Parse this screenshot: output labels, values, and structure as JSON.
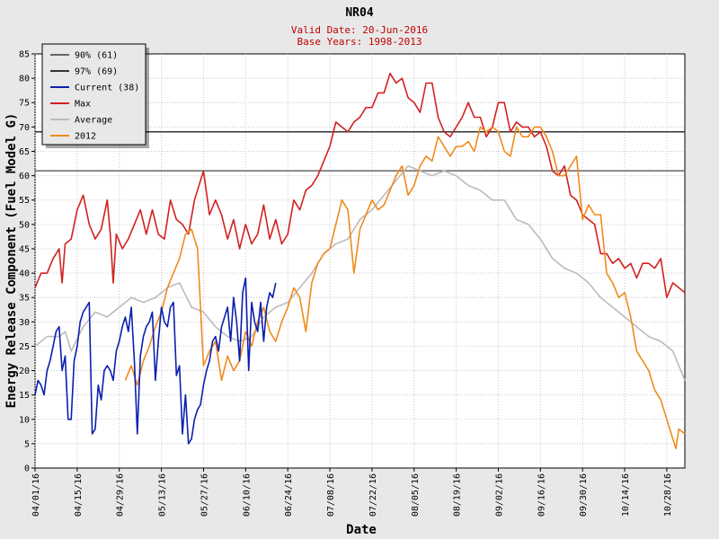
{
  "colors": {
    "pct90": "#666666",
    "pct97": "#333333",
    "current": "#0b1fb0",
    "max": "#d42020",
    "average": "#bbbbbb",
    "y2012": "#f08a1c"
  },
  "chart_data": {
    "type": "line",
    "title": "NR04",
    "subtitle_lines": [
      "Valid Date: 20-Jun-2016",
      "Base Years: 1998-2013"
    ],
    "xlabel": "Date",
    "ylabel": "Energy Release Component (Fuel Model G)",
    "ylim": [
      0,
      85
    ],
    "yticks": [
      0,
      5,
      10,
      15,
      20,
      25,
      30,
      35,
      40,
      45,
      50,
      55,
      60,
      65,
      70,
      75,
      80,
      85
    ],
    "x_domain": [
      "04/01/16",
      "11/03/16"
    ],
    "xticks": [
      "04/01/16",
      "04/15/16",
      "04/29/16",
      "05/13/16",
      "05/27/16",
      "06/10/16",
      "06/24/16",
      "07/08/16",
      "07/22/16",
      "08/05/16",
      "08/19/16",
      "09/02/16",
      "09/16/16",
      "09/30/16",
      "10/14/16",
      "10/28/16"
    ],
    "grid": true,
    "legend_position": "top-left",
    "thresholds": [
      {
        "name": "90% (61)",
        "value": 61,
        "color_key": "pct90"
      },
      {
        "name": "97% (69)",
        "value": 69,
        "color_key": "pct97"
      }
    ],
    "series": [
      {
        "name": "Current (38)",
        "color_key": "current",
        "x": [
          "04/01/16",
          "04/02/16",
          "04/03/16",
          "04/04/16",
          "04/05/16",
          "04/06/16",
          "04/07/16",
          "04/08/16",
          "04/09/16",
          "04/10/16",
          "04/11/16",
          "04/12/16",
          "04/13/16",
          "04/14/16",
          "04/15/16",
          "04/16/16",
          "04/17/16",
          "04/18/16",
          "04/19/16",
          "04/20/16",
          "04/21/16",
          "04/22/16",
          "04/23/16",
          "04/24/16",
          "04/25/16",
          "04/26/16",
          "04/27/16",
          "04/28/16",
          "04/29/16",
          "04/30/16",
          "05/01/16",
          "05/02/16",
          "05/03/16",
          "05/04/16",
          "05/05/16",
          "05/06/16",
          "05/07/16",
          "05/08/16",
          "05/09/16",
          "05/10/16",
          "05/11/16",
          "05/12/16",
          "05/13/16",
          "05/14/16",
          "05/15/16",
          "05/16/16",
          "05/17/16",
          "05/18/16",
          "05/19/16",
          "05/20/16",
          "05/21/16",
          "05/22/16",
          "05/23/16",
          "05/24/16",
          "05/25/16",
          "05/26/16",
          "05/27/16",
          "05/28/16",
          "05/29/16",
          "05/30/16",
          "05/31/16",
          "06/01/16",
          "06/02/16",
          "06/03/16",
          "06/04/16",
          "06/05/16",
          "06/06/16",
          "06/07/16",
          "06/08/16",
          "06/09/16",
          "06/10/16",
          "06/11/16",
          "06/12/16",
          "06/13/16",
          "06/14/16",
          "06/15/16",
          "06/16/16",
          "06/17/16",
          "06/18/16",
          "06/19/16",
          "06/20/16"
        ],
        "values": [
          15,
          18,
          17,
          15,
          20,
          22,
          25,
          28,
          29,
          20,
          23,
          10,
          10,
          22,
          25,
          30,
          32,
          33,
          34,
          7,
          8,
          17,
          14,
          20,
          21,
          20,
          18,
          24,
          26,
          29,
          31,
          28,
          33,
          22,
          7,
          23,
          27,
          29,
          30,
          32,
          18,
          26,
          33,
          30,
          29,
          33,
          34,
          19,
          21,
          7,
          15,
          5,
          6,
          10,
          12,
          13,
          17,
          20,
          22,
          26,
          27,
          24,
          29,
          31,
          33,
          26,
          35,
          30,
          22,
          36,
          39,
          20,
          34,
          30,
          28,
          34,
          26,
          33,
          36,
          35,
          38
        ]
      },
      {
        "name": "Max",
        "color_key": "max",
        "x": [
          "04/01/16",
          "04/03/16",
          "04/05/16",
          "04/07/16",
          "04/09/16",
          "04/10/16",
          "04/11/16",
          "04/13/16",
          "04/15/16",
          "04/17/16",
          "04/19/16",
          "04/21/16",
          "04/23/16",
          "04/25/16",
          "04/26/16",
          "04/27/16",
          "04/28/16",
          "04/30/16",
          "05/02/16",
          "05/04/16",
          "05/06/16",
          "05/08/16",
          "05/10/16",
          "05/12/16",
          "05/14/16",
          "05/16/16",
          "05/18/16",
          "05/20/16",
          "05/22/16",
          "05/24/16",
          "05/26/16",
          "05/27/16",
          "05/29/16",
          "05/31/16",
          "06/02/16",
          "06/04/16",
          "06/06/16",
          "06/08/16",
          "06/10/16",
          "06/12/16",
          "06/14/16",
          "06/16/16",
          "06/18/16",
          "06/20/16",
          "06/22/16",
          "06/24/16",
          "06/26/16",
          "06/28/16",
          "06/30/16",
          "07/02/16",
          "07/04/16",
          "07/06/16",
          "07/08/16",
          "07/10/16",
          "07/12/16",
          "07/14/16",
          "07/16/16",
          "07/18/16",
          "07/20/16",
          "07/22/16",
          "07/24/16",
          "07/26/16",
          "07/28/16",
          "07/30/16",
          "08/01/16",
          "08/03/16",
          "08/05/16",
          "08/07/16",
          "08/09/16",
          "08/11/16",
          "08/13/16",
          "08/15/16",
          "08/17/16",
          "08/19/16",
          "08/21/16",
          "08/23/16",
          "08/25/16",
          "08/27/16",
          "08/29/16",
          "08/31/16",
          "09/02/16",
          "09/04/16",
          "09/06/16",
          "09/08/16",
          "09/10/16",
          "09/12/16",
          "09/14/16",
          "09/16/16",
          "09/18/16",
          "09/20/16",
          "09/22/16",
          "09/24/16",
          "09/26/16",
          "09/28/16",
          "09/30/16",
          "10/02/16",
          "10/04/16",
          "10/06/16",
          "10/08/16",
          "10/10/16",
          "10/12/16",
          "10/14/16",
          "10/16/16",
          "10/18/16",
          "10/20/16",
          "10/22/16",
          "10/24/16",
          "10/26/16",
          "10/28/16",
          "10/30/16",
          "11/01/16",
          "11/03/16"
        ],
        "values": [
          37,
          40,
          40,
          43,
          45,
          38,
          46,
          47,
          53,
          56,
          50,
          47,
          49,
          55,
          48,
          38,
          48,
          45,
          47,
          50,
          53,
          48,
          53,
          48,
          47,
          55,
          51,
          50,
          48,
          55,
          59,
          61,
          52,
          55,
          52,
          47,
          51,
          45,
          50,
          46,
          48,
          54,
          47,
          51,
          46,
          48,
          55,
          53,
          57,
          58,
          60,
          63,
          66,
          71,
          70,
          69,
          71,
          72,
          74,
          74,
          77,
          77,
          81,
          79,
          80,
          76,
          75,
          73,
          79,
          79,
          72,
          69,
          68,
          70,
          72,
          75,
          72,
          72,
          68,
          70,
          75,
          75,
          69,
          71,
          70,
          70,
          68,
          69,
          66,
          61,
          60,
          62,
          56,
          55,
          52,
          51,
          50,
          44,
          44,
          42,
          43,
          41,
          42,
          39,
          42,
          42,
          41,
          43,
          35,
          38,
          37,
          36
        ]
      },
      {
        "name": "Average",
        "color_key": "average",
        "x": [
          "04/01/16",
          "04/05/16",
          "04/09/16",
          "04/11/16",
          "04/13/16",
          "04/17/16",
          "04/21/16",
          "04/25/16",
          "04/29/16",
          "05/03/16",
          "05/07/16",
          "05/11/16",
          "05/15/16",
          "05/19/16",
          "05/23/16",
          "05/27/16",
          "05/31/16",
          "06/04/16",
          "06/08/16",
          "06/12/16",
          "06/16/16",
          "06/20/16",
          "06/24/16",
          "06/28/16",
          "07/02/16",
          "07/06/16",
          "07/10/16",
          "07/14/16",
          "07/18/16",
          "07/22/16",
          "07/26/16",
          "07/30/16",
          "08/03/16",
          "08/07/16",
          "08/11/16",
          "08/15/16",
          "08/19/16",
          "08/23/16",
          "08/27/16",
          "08/31/16",
          "09/04/16",
          "09/08/16",
          "09/12/16",
          "09/16/16",
          "09/20/16",
          "09/24/16",
          "09/28/16",
          "10/02/16",
          "10/06/16",
          "10/10/16",
          "10/14/16",
          "10/18/16",
          "10/22/16",
          "10/26/16",
          "10/30/16",
          "11/03/16"
        ],
        "values": [
          25,
          27,
          27,
          28,
          24,
          29,
          32,
          31,
          33,
          35,
          34,
          35,
          37,
          38,
          33,
          32,
          29,
          27,
          26,
          27,
          31,
          33,
          34,
          37,
          40,
          44,
          46,
          47,
          51,
          53,
          56,
          59,
          62,
          61,
          60,
          61,
          60,
          58,
          57,
          55,
          55,
          51,
          50,
          47,
          43,
          41,
          40,
          38,
          35,
          33,
          31,
          29,
          27,
          26,
          24,
          18
        ]
      },
      {
        "name": "2012",
        "color_key": "y2012",
        "x": [
          "05/01/16",
          "05/03/16",
          "05/05/16",
          "05/07/16",
          "05/09/16",
          "05/11/16",
          "05/13/16",
          "05/15/16",
          "05/17/16",
          "05/19/16",
          "05/21/16",
          "05/23/16",
          "05/25/16",
          "05/27/16",
          "05/29/16",
          "05/31/16",
          "06/02/16",
          "06/04/16",
          "06/06/16",
          "06/08/16",
          "06/10/16",
          "06/12/16",
          "06/14/16",
          "06/16/16",
          "06/18/16",
          "06/20/16",
          "06/22/16",
          "06/24/16",
          "06/26/16",
          "06/28/16",
          "06/30/16",
          "07/02/16",
          "07/04/16",
          "07/06/16",
          "07/08/16",
          "07/10/16",
          "07/12/16",
          "07/14/16",
          "07/16/16",
          "07/18/16",
          "07/20/16",
          "07/22/16",
          "07/24/16",
          "07/26/16",
          "07/28/16",
          "07/30/16",
          "08/01/16",
          "08/03/16",
          "08/05/16",
          "08/07/16",
          "08/09/16",
          "08/11/16",
          "08/13/16",
          "08/15/16",
          "08/17/16",
          "08/19/16",
          "08/21/16",
          "08/23/16",
          "08/25/16",
          "08/27/16",
          "08/29/16",
          "08/31/16",
          "09/02/16",
          "09/04/16",
          "09/06/16",
          "09/08/16",
          "09/10/16",
          "09/12/16",
          "09/14/16",
          "09/16/16",
          "09/18/16",
          "09/20/16",
          "09/22/16",
          "09/24/16",
          "09/26/16",
          "09/28/16",
          "09/30/16",
          "10/02/16",
          "10/04/16",
          "10/06/16",
          "10/08/16",
          "10/10/16",
          "10/12/16",
          "10/14/16",
          "10/16/16",
          "10/18/16",
          "10/20/16",
          "10/22/16",
          "10/24/16",
          "10/26/16",
          "10/28/16",
          "10/30/16",
          "10/31/16",
          "11/01/16",
          "11/03/16"
        ],
        "values": [
          18,
          21,
          17,
          22,
          25,
          29,
          32,
          37,
          40,
          43,
          48,
          49,
          45,
          21,
          24,
          26,
          18,
          23,
          20,
          22,
          28,
          25,
          30,
          33,
          28,
          26,
          30,
          33,
          37,
          35,
          28,
          38,
          42,
          44,
          45,
          50,
          55,
          53,
          40,
          49,
          52,
          55,
          53,
          54,
          57,
          60,
          62,
          56,
          58,
          62,
          64,
          63,
          68,
          66,
          64,
          66,
          66,
          67,
          65,
          70,
          69,
          70,
          69,
          65,
          64,
          70,
          68,
          68,
          70,
          70,
          68,
          65,
          60,
          60,
          62,
          64,
          51,
          54,
          52,
          52,
          40,
          38,
          35,
          36,
          31,
          24,
          22,
          20,
          16,
          14,
          10,
          6,
          4,
          8,
          7
        ]
      }
    ]
  }
}
